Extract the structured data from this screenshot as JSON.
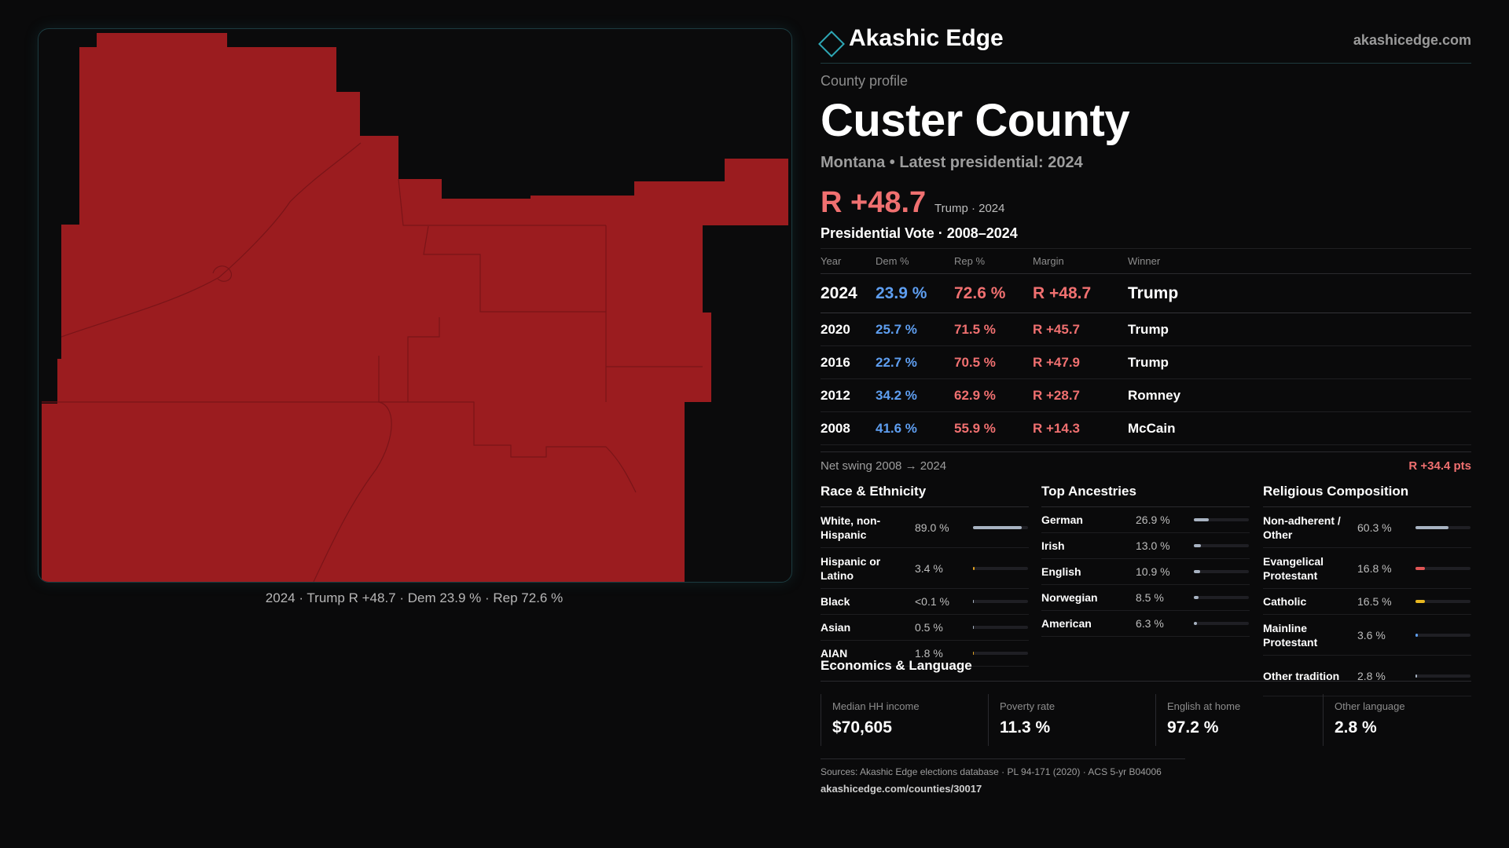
{
  "map": {
    "fill_color": "#9b1c1f",
    "caption": "2024 · Trump R +48.7 · Dem 23.9 % · Rep 72.6 %"
  },
  "brand": {
    "name": "Akashic Edge",
    "url": "akashicedge.com",
    "logo_icon": "diamond-outline-icon",
    "accent": "#2ea7b5"
  },
  "profile": {
    "eyebrow": "County profile",
    "title": "Custer County",
    "subtitle": "Montana • Latest presidential: 2024",
    "headline_margin": "R +48.7",
    "headline_meta": "Trump · 2024"
  },
  "vote_table": {
    "title": "Presidential Vote · 2008–2024",
    "headers": {
      "year": "Year",
      "dem": "Dem %",
      "rep": "Rep %",
      "margin": "Margin",
      "winner": "Winner"
    },
    "rows": [
      {
        "year": "2024",
        "dem": "23.9 %",
        "rep": "72.6 %",
        "margin": "R +48.7",
        "winner": "Trump"
      },
      {
        "year": "2020",
        "dem": "25.7 %",
        "rep": "71.5 %",
        "margin": "R +45.7",
        "winner": "Trump"
      },
      {
        "year": "2016",
        "dem": "22.7 %",
        "rep": "70.5 %",
        "margin": "R +47.9",
        "winner": "Trump"
      },
      {
        "year": "2012",
        "dem": "34.2 %",
        "rep": "62.9 %",
        "margin": "R +28.7",
        "winner": "Romney"
      },
      {
        "year": "2008",
        "dem": "41.6 %",
        "rep": "55.9 %",
        "margin": "R +14.3",
        "winner": "McCain"
      }
    ],
    "dem_color": "#5e9ef0",
    "rep_color": "#f07070"
  },
  "swing": {
    "label": "Net swing 2008 → 2024",
    "value": "R +34.4 pts"
  },
  "race": {
    "title": "Race & Ethnicity",
    "items": [
      {
        "label": "White, non-Hispanic",
        "value": "89.0 %",
        "level": 89.0,
        "color": "#a8b3c2"
      },
      {
        "label": "Hispanic or Latino",
        "value": "3.4 %",
        "level": 3.4,
        "color": "#e0a020"
      },
      {
        "label": "Black",
        "value": "<0.1 %",
        "level": 0.05,
        "color": "#a8b3c2"
      },
      {
        "label": "Asian",
        "value": "0.5 %",
        "level": 0.5,
        "color": "#a8b3c2"
      },
      {
        "label": "AIAN",
        "value": "1.8 %",
        "level": 1.8,
        "color": "#e0a020"
      }
    ]
  },
  "ancestry": {
    "title": "Top Ancestries",
    "items": [
      {
        "label": "German",
        "value": "26.9 %",
        "level": 26.9,
        "color": "#a8b3c2"
      },
      {
        "label": "Irish",
        "value": "13.0 %",
        "level": 13.0,
        "color": "#a8b3c2"
      },
      {
        "label": "English",
        "value": "10.9 %",
        "level": 10.9,
        "color": "#a8b3c2"
      },
      {
        "label": "Norwegian",
        "value": "8.5 %",
        "level": 8.5,
        "color": "#a8b3c2"
      },
      {
        "label": "American",
        "value": "6.3 %",
        "level": 6.3,
        "color": "#a8b3c2"
      }
    ]
  },
  "religion": {
    "title": "Religious Composition",
    "items": [
      {
        "label": "Non-adherent / Other",
        "value": "60.3 %",
        "level": 60.3,
        "color": "#a8b3c2"
      },
      {
        "label": "Evangelical Protestant",
        "value": "16.8 %",
        "level": 16.8,
        "color": "#e05555"
      },
      {
        "label": "Catholic",
        "value": "16.5 %",
        "level": 16.5,
        "color": "#e8b820"
      },
      {
        "label": "Mainline Protestant",
        "value": "3.6 %",
        "level": 3.6,
        "color": "#5e9ef0"
      },
      {
        "label": "Other tradition",
        "value": "2.8 %",
        "level": 2.8,
        "color": "#a8b3c2"
      }
    ]
  },
  "economics": {
    "title": "Economics & Language",
    "cells": [
      {
        "label": "Median HH income",
        "value": "$70,605"
      },
      {
        "label": "Poverty rate",
        "value": "11.3 %"
      },
      {
        "label": "English at home",
        "value": "97.2 %"
      },
      {
        "label": "Other language",
        "value": "2.8 %"
      }
    ]
  },
  "sources": {
    "line1": "Sources: Akashic Edge elections database · PL 94-171 (2020) · ACS 5-yr B04006",
    "line2": "akashicedge.com/counties/30017"
  }
}
